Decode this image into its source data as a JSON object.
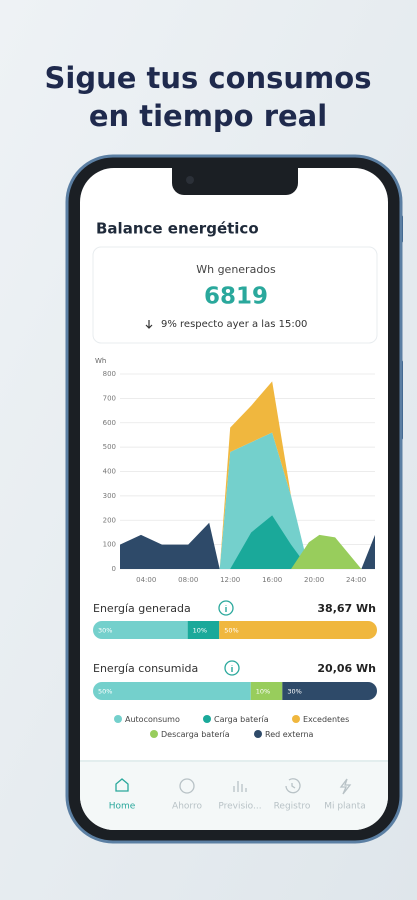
{
  "header": {
    "title": [
      "Sigue tus consumos",
      "en tiempo real"
    ]
  },
  "screen": {
    "title": "Balance energético",
    "card": {
      "label": "Wh generados",
      "value": 6819,
      "change": "9% respecto ayer a las 15:00"
    }
  },
  "chart_data": [
    {
      "type": "area",
      "y_label": "Wh",
      "x": [
        1.5,
        3.5,
        5.5,
        8,
        10,
        11,
        12,
        14,
        16,
        17.8,
        19.5,
        20.5,
        22,
        24.5,
        25.8
      ],
      "xlim": [
        1.5,
        25.8
      ],
      "xticks": [
        {
          "value": 4,
          "label": "04:00"
        },
        {
          "value": 8,
          "label": "08:00"
        },
        {
          "value": 12,
          "label": "12:00"
        },
        {
          "value": 16,
          "label": "16:00"
        },
        {
          "value": 20,
          "label": "20:00"
        },
        {
          "value": 24,
          "label": "24:00"
        }
      ],
      "ylim": [
        0,
        800
      ],
      "yticks": [
        0,
        100,
        200,
        300,
        400,
        500,
        600,
        700,
        800
      ],
      "grid": true,
      "series": [
        {
          "name": "Autoconsumo",
          "color": "#74d0cc",
          "values": [
            0,
            0,
            0,
            0,
            0,
            0,
            480,
            520,
            560,
            300,
            0,
            0,
            0,
            0,
            0
          ]
        },
        {
          "name": "Carga batería",
          "color": "#1aa99a",
          "values": [
            0,
            0,
            0,
            0,
            0,
            0,
            0,
            150,
            220,
            100,
            0,
            0,
            0,
            0,
            0
          ]
        },
        {
          "name": "Excedentes",
          "color": "#f0b73e",
          "stack_on": "Autoconsumo",
          "values": [
            0,
            0,
            0,
            0,
            0,
            0,
            100,
            150,
            210,
            0,
            0,
            0,
            0,
            0,
            0
          ]
        },
        {
          "name": "Descarga batería",
          "color": "#98cd5c",
          "values": [
            0,
            0,
            0,
            0,
            0,
            0,
            0,
            0,
            0,
            0,
            110,
            140,
            130,
            0,
            0
          ]
        },
        {
          "name": "Red externa",
          "color": "#2e4a69",
          "values": [
            100,
            140,
            100,
            100,
            190,
            0,
            0,
            0,
            0,
            0,
            0,
            0,
            0,
            0,
            140
          ]
        }
      ]
    },
    {
      "type": "stacked-bar",
      "title": "Energía generada",
      "total": "38,67 Wh",
      "values": [
        30,
        10,
        50
      ],
      "value_labels": [
        "30%",
        "10%",
        "50%"
      ],
      "colors": [
        "#74d0cc",
        "#1aa99a",
        "#f0b73e"
      ]
    },
    {
      "type": "stacked-bar",
      "title": "Energía consumida",
      "total": "20,06 Wh",
      "values": [
        50,
        10,
        30
      ],
      "value_labels": [
        "50%",
        "10%",
        "30%"
      ],
      "colors": [
        "#74d0cc",
        "#98cd5c",
        "#2e4a69"
      ]
    }
  ],
  "nav": {
    "items": [
      "Home",
      "Ahorro",
      "Previsio...",
      "Registro",
      "Mi planta"
    ],
    "active": 0
  }
}
